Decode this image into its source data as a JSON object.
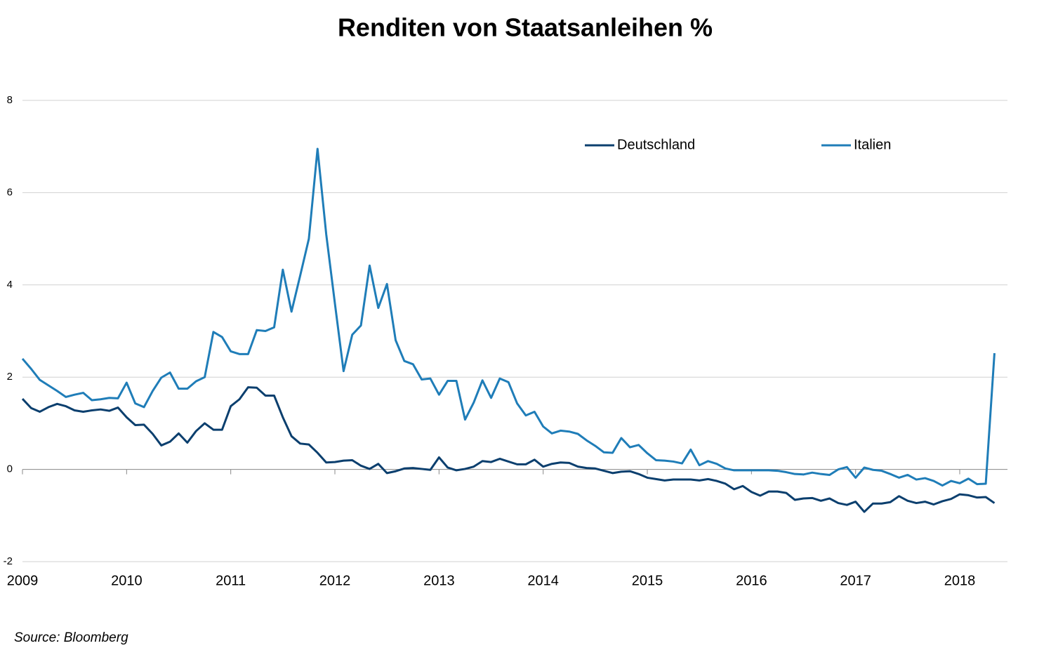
{
  "chart_data": {
    "type": "line",
    "title": "Renditen von Staatsanleihen  %",
    "source": "Source: Bloomberg",
    "categories": [
      "2009",
      null,
      null,
      null,
      null,
      null,
      null,
      null,
      null,
      null,
      null,
      null,
      "2010",
      null,
      null,
      null,
      null,
      null,
      null,
      null,
      null,
      null,
      null,
      null,
      "2011",
      null,
      null,
      null,
      null,
      null,
      null,
      null,
      null,
      null,
      null,
      null,
      "2012",
      null,
      null,
      null,
      null,
      null,
      null,
      null,
      null,
      null,
      null,
      null,
      "2013",
      null,
      null,
      null,
      null,
      null,
      null,
      null,
      null,
      null,
      null,
      null,
      "2014",
      null,
      null,
      null,
      null,
      null,
      null,
      null,
      null,
      null,
      null,
      null,
      "2015",
      null,
      null,
      null,
      null,
      null,
      null,
      null,
      null,
      null,
      null,
      null,
      "2016",
      null,
      null,
      null,
      null,
      null,
      null,
      null,
      null,
      null,
      null,
      null,
      "2017",
      null,
      null,
      null,
      null,
      null,
      null,
      null,
      null,
      null,
      null,
      null,
      "2018",
      null,
      null,
      null,
      null
    ],
    "series": [
      {
        "name": "Deutschland",
        "color": "#0b3f6e",
        "values": [
          1.53,
          1.33,
          1.25,
          1.35,
          1.42,
          1.37,
          1.28,
          1.25,
          1.28,
          1.3,
          1.27,
          1.34,
          1.13,
          0.96,
          0.97,
          0.77,
          0.52,
          0.6,
          0.78,
          0.58,
          0.83,
          1.0,
          0.86,
          0.86,
          1.37,
          1.52,
          1.78,
          1.77,
          1.6,
          1.6,
          1.13,
          0.72,
          0.56,
          0.54,
          0.36,
          0.15,
          0.16,
          0.19,
          0.2,
          0.08,
          0.01,
          0.12,
          -0.08,
          -0.04,
          0.02,
          0.03,
          0.01,
          -0.01,
          0.26,
          0.04,
          -0.02,
          0.01,
          0.06,
          0.18,
          0.16,
          0.23,
          0.17,
          0.11,
          0.11,
          0.21,
          0.06,
          0.12,
          0.15,
          0.14,
          0.06,
          0.03,
          0.02,
          -0.03,
          -0.08,
          -0.05,
          -0.04,
          -0.1,
          -0.18,
          -0.21,
          -0.24,
          -0.22,
          -0.22,
          -0.22,
          -0.24,
          -0.21,
          -0.25,
          -0.31,
          -0.43,
          -0.36,
          -0.49,
          -0.57,
          -0.48,
          -0.48,
          -0.51,
          -0.66,
          -0.63,
          -0.62,
          -0.68,
          -0.63,
          -0.73,
          -0.77,
          -0.7,
          -0.92,
          -0.74,
          -0.74,
          -0.71,
          -0.58,
          -0.68,
          -0.73,
          -0.7,
          -0.76,
          -0.69,
          -0.64,
          -0.54,
          -0.56,
          -0.61,
          -0.6,
          -0.73
        ]
      },
      {
        "name": "Italien",
        "color": "#1f7db8",
        "values": [
          2.4,
          2.18,
          1.94,
          1.82,
          1.7,
          1.57,
          1.62,
          1.66,
          1.5,
          1.52,
          1.55,
          1.54,
          1.88,
          1.43,
          1.35,
          1.7,
          1.99,
          2.1,
          1.75,
          1.75,
          1.91,
          2.0,
          2.98,
          2.87,
          2.56,
          2.5,
          2.5,
          3.02,
          3.0,
          3.08,
          4.33,
          3.42,
          4.2,
          5.0,
          6.95,
          5.1,
          3.6,
          2.13,
          2.92,
          3.12,
          4.42,
          3.5,
          4.02,
          2.8,
          2.35,
          2.28,
          1.95,
          1.97,
          1.62,
          1.92,
          1.92,
          1.08,
          1.45,
          1.93,
          1.55,
          1.97,
          1.89,
          1.43,
          1.17,
          1.25,
          0.93,
          0.78,
          0.84,
          0.82,
          0.77,
          0.63,
          0.51,
          0.37,
          0.36,
          0.68,
          0.48,
          0.53,
          0.35,
          0.2,
          0.19,
          0.17,
          0.13,
          0.43,
          0.09,
          0.18,
          0.12,
          0.02,
          -0.02,
          -0.02,
          -0.02,
          -0.02,
          -0.02,
          -0.03,
          -0.06,
          -0.1,
          -0.11,
          -0.07,
          -0.1,
          -0.12,
          0.0,
          0.05,
          -0.18,
          0.04,
          -0.01,
          -0.03,
          -0.1,
          -0.18,
          -0.12,
          -0.22,
          -0.19,
          -0.25,
          -0.35,
          -0.25,
          -0.3,
          -0.2,
          -0.32,
          -0.31,
          2.52
        ]
      }
    ],
    "ylim": [
      -2,
      8
    ],
    "yticks": [
      -2,
      0,
      2,
      4,
      6,
      8
    ],
    "grid": true,
    "legend": "top"
  }
}
